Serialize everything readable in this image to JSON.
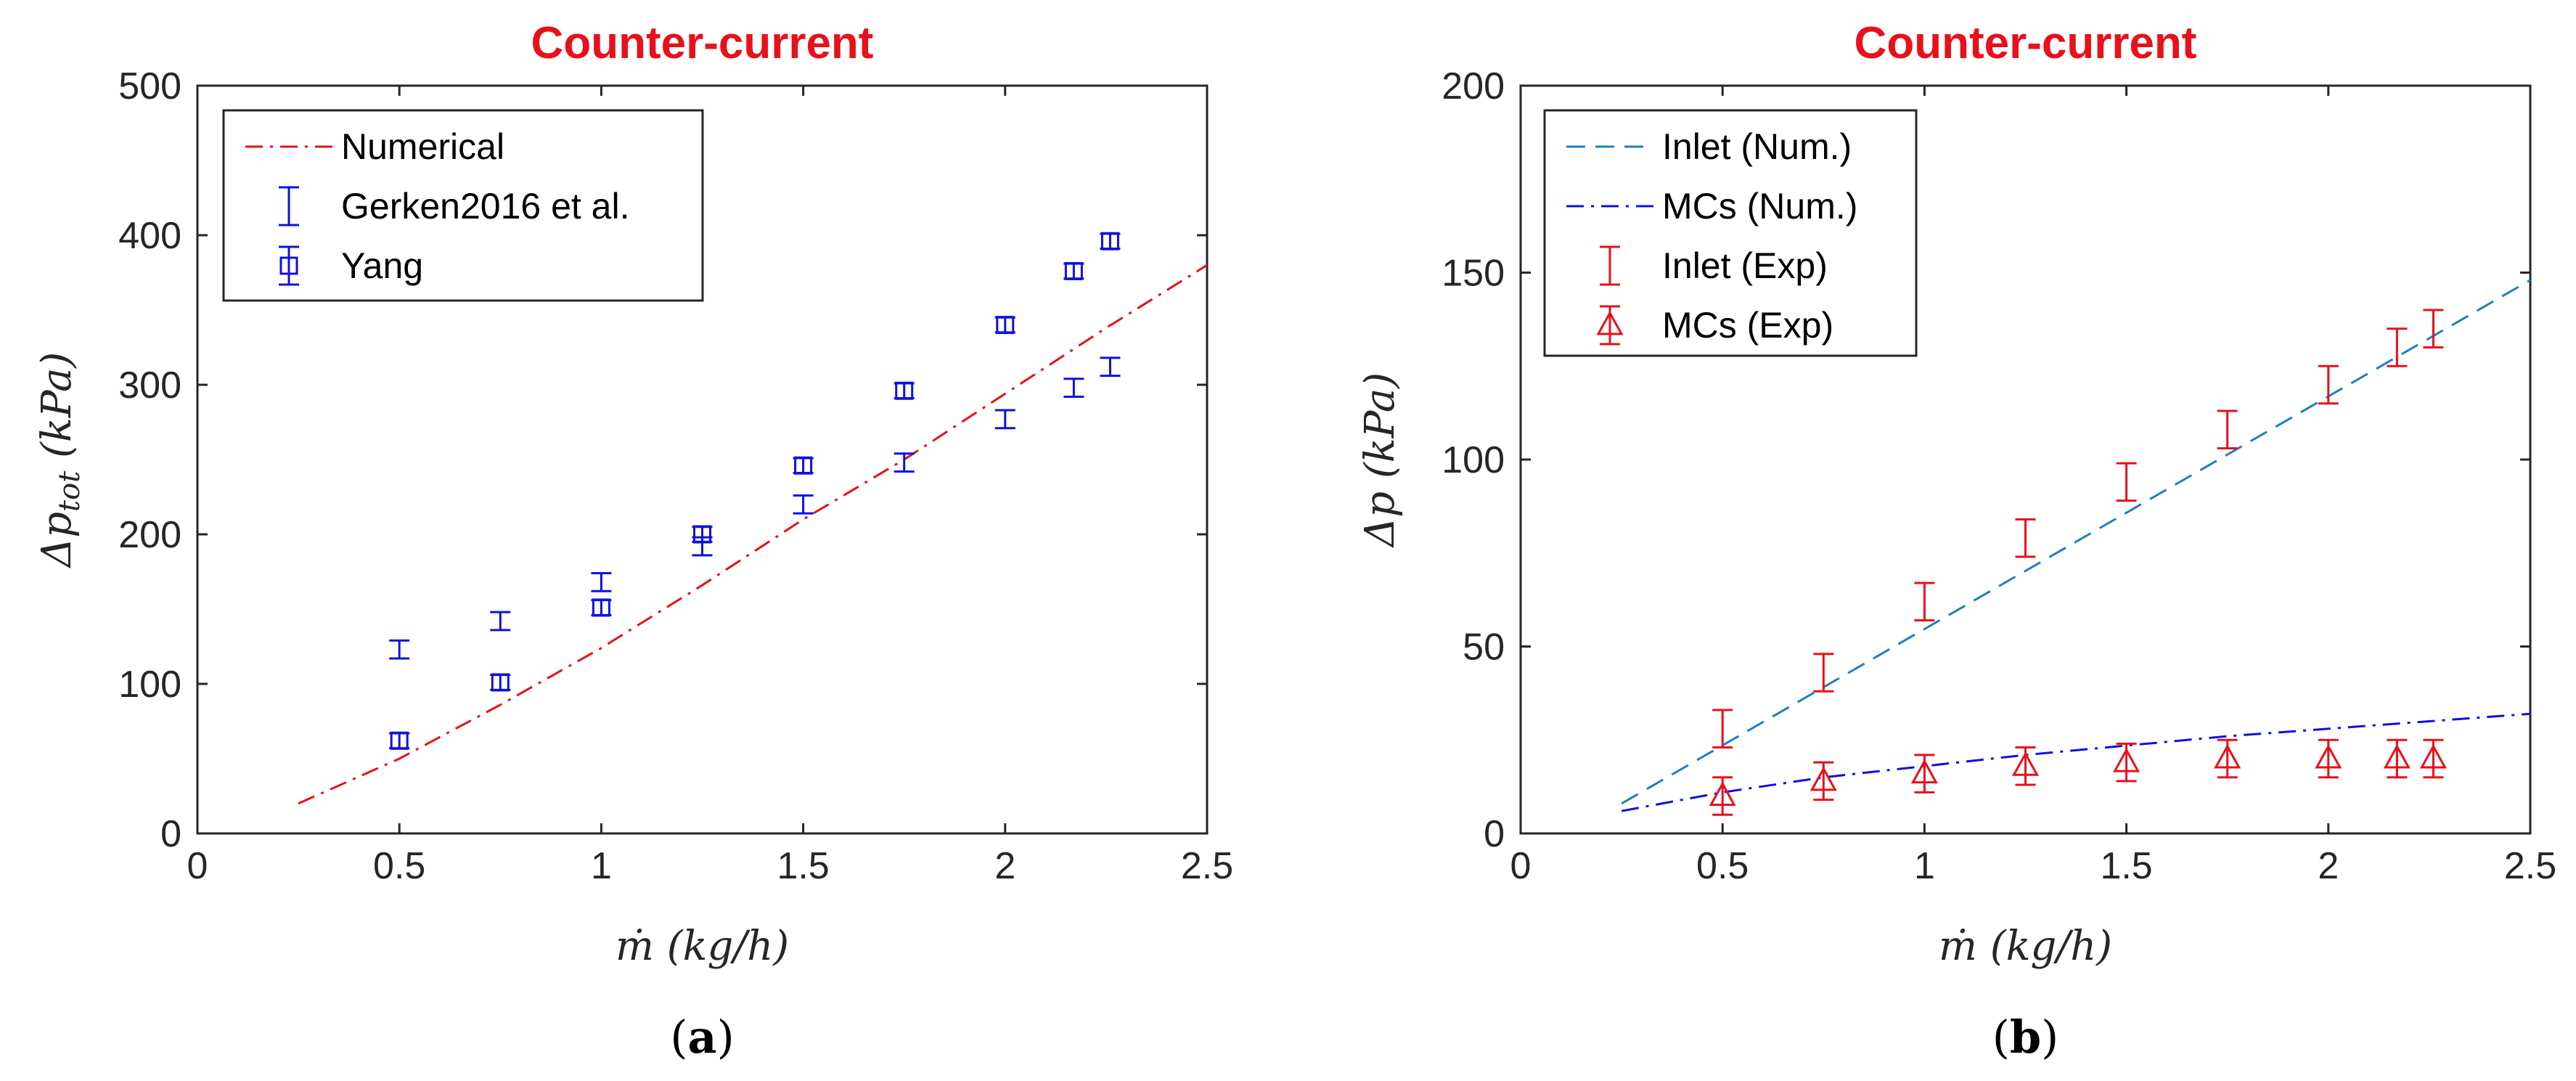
{
  "chart_data": [
    {
      "type": "scatter",
      "panel": "a",
      "caption": {
        "open": "(",
        "letter": "a",
        "close": ")"
      },
      "title": "Counter-current",
      "xlabel": "ṁ (kg/h)",
      "ylabel": "Δp_tot (kPa)",
      "ylabel_main": "Δp",
      "ylabel_sub": "tot",
      "ylabel_unit": " (kPa)",
      "xlim": [
        0,
        2.5
      ],
      "ylim": [
        0,
        500
      ],
      "xticks": [
        "0",
        "0.5",
        "1",
        "1.5",
        "2",
        "2.5"
      ],
      "yticks": [
        "0",
        "100",
        "200",
        "300",
        "400",
        "500"
      ],
      "legend_position": "top-left",
      "series": [
        {
          "name": "Numerical",
          "style": "dashdot",
          "color": "#e8101a",
          "x": [
            0.25,
            0.5,
            0.75,
            1.0,
            1.25,
            1.5,
            1.75,
            2.0,
            2.25,
            2.5
          ],
          "y": [
            20,
            50,
            86,
            124,
            166,
            210,
            250,
            294,
            338,
            380
          ]
        },
        {
          "name": "Gerken2016 et al.",
          "marker": "errorbar",
          "color": "#1010e0",
          "x": [
            0.5,
            0.75,
            1.0,
            1.25,
            1.5,
            1.75,
            2.0,
            2.17,
            2.26
          ],
          "y": [
            123,
            142,
            168,
            192,
            220,
            248,
            277,
            298,
            312
          ],
          "err": [
            6,
            6,
            6,
            6,
            6,
            6,
            6,
            6,
            6
          ]
        },
        {
          "name": "Yang",
          "marker": "square",
          "color": "#1010e0",
          "x": [
            0.5,
            0.75,
            1.0,
            1.25,
            1.5,
            1.75,
            2.0,
            2.17,
            2.26
          ],
          "y": [
            62,
            101,
            151,
            200,
            246,
            296,
            340,
            376,
            396
          ],
          "err": [
            5,
            5,
            5,
            5,
            5,
            5,
            5,
            5,
            5
          ]
        }
      ]
    },
    {
      "type": "scatter",
      "panel": "b",
      "caption": {
        "open": "(",
        "letter": "b",
        "close": ")"
      },
      "title": "Counter-current",
      "xlabel": "ṁ (kg/h)",
      "ylabel": "Δp (kPa)",
      "ylabel_main": "Δp",
      "ylabel_sub": "",
      "ylabel_unit": " (kPa)",
      "xlim": [
        0,
        2.5
      ],
      "ylim": [
        0,
        200
      ],
      "xticks": [
        "0",
        "0.5",
        "1",
        "1.5",
        "2",
        "2.5"
      ],
      "yticks": [
        "0",
        "50",
        "100",
        "150",
        "200"
      ],
      "legend_position": "top-left",
      "series": [
        {
          "name": "Inlet (Num.)",
          "style": "dashed",
          "color": "#1f7fbf",
          "x": [
            0.25,
            2.5
          ],
          "y": [
            8,
            148
          ]
        },
        {
          "name": "MCs (Num.)",
          "style": "dashdot",
          "color": "#1010e0",
          "x": [
            0.25,
            0.5,
            0.75,
            1.0,
            1.25,
            1.5,
            1.75,
            2.0,
            2.25,
            2.5
          ],
          "y": [
            6,
            11,
            15,
            18,
            21,
            23.5,
            26,
            28,
            30,
            32
          ]
        },
        {
          "name": "Inlet (Exp)",
          "marker": "errorbar",
          "color": "#e8101a",
          "x": [
            0.5,
            0.75,
            1.0,
            1.25,
            1.5,
            1.75,
            2.0,
            2.17,
            2.26
          ],
          "y": [
            28,
            43,
            62,
            79,
            94,
            108,
            120,
            130,
            135
          ],
          "err": [
            5,
            5,
            5,
            5,
            5,
            5,
            5,
            5,
            5
          ]
        },
        {
          "name": "MCs (Exp)",
          "marker": "triangle",
          "color": "#e8101a",
          "x": [
            0.5,
            0.75,
            1.0,
            1.25,
            1.5,
            1.75,
            2.0,
            2.17,
            2.26
          ],
          "y": [
            10,
            14,
            16,
            18,
            19,
            20,
            20,
            20,
            20
          ],
          "err": [
            5,
            5,
            5,
            5,
            5,
            5,
            5,
            5,
            5
          ]
        }
      ]
    }
  ]
}
